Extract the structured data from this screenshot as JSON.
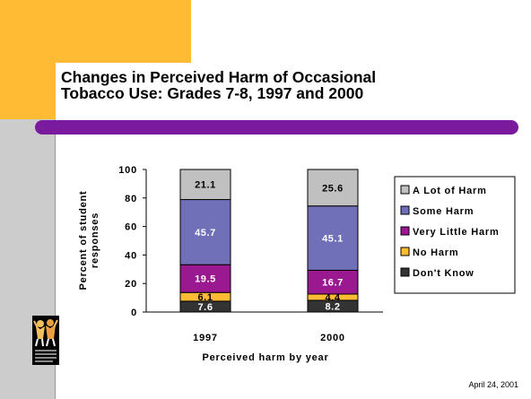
{
  "slide": {
    "title": "Changes in Perceived Harm of Occasional\nTobacco Use: Grades 7-8, 1997 and 2000",
    "date": "April 24, 2001",
    "logo_icon": "cheering-kids-logo-icon",
    "colors": {
      "left_bar": "#cccccc",
      "yellow_accent": "#ffbb33",
      "purple_bar": "#7a1a9c"
    }
  },
  "chart_data": {
    "type": "bar",
    "stacked": true,
    "categories": [
      "1997",
      "2000"
    ],
    "series": [
      {
        "name": "Don't Know",
        "values": [
          7.6,
          8.2
        ],
        "color": "#333333",
        "label_color": "#ffffff"
      },
      {
        "name": "No Harm",
        "values": [
          6.1,
          4.4
        ],
        "color": "#ffbb33",
        "label_color": "#000000"
      },
      {
        "name": "Very Little Harm",
        "values": [
          19.5,
          16.7
        ],
        "color": "#9a1890",
        "label_color": "#ffffff"
      },
      {
        "name": "Some Harm",
        "values": [
          45.7,
          45.1
        ],
        "color": "#7070b8",
        "label_color": "#ffffff"
      },
      {
        "name": "A Lot of Harm",
        "values": [
          21.1,
          25.6
        ],
        "color": "#c0c0c0",
        "label_color": "#000000"
      }
    ],
    "ylabel": "Percent of student\nresponses",
    "xlabel": "Perceived harm by year",
    "ylim": [
      0,
      100
    ],
    "yticks": [
      0,
      20,
      40,
      60,
      80,
      100
    ],
    "grid": false,
    "legend_position": "right",
    "legend_order": [
      "A Lot of Harm",
      "Some Harm",
      "Very Little Harm",
      "No Harm",
      "Don't Know"
    ]
  }
}
